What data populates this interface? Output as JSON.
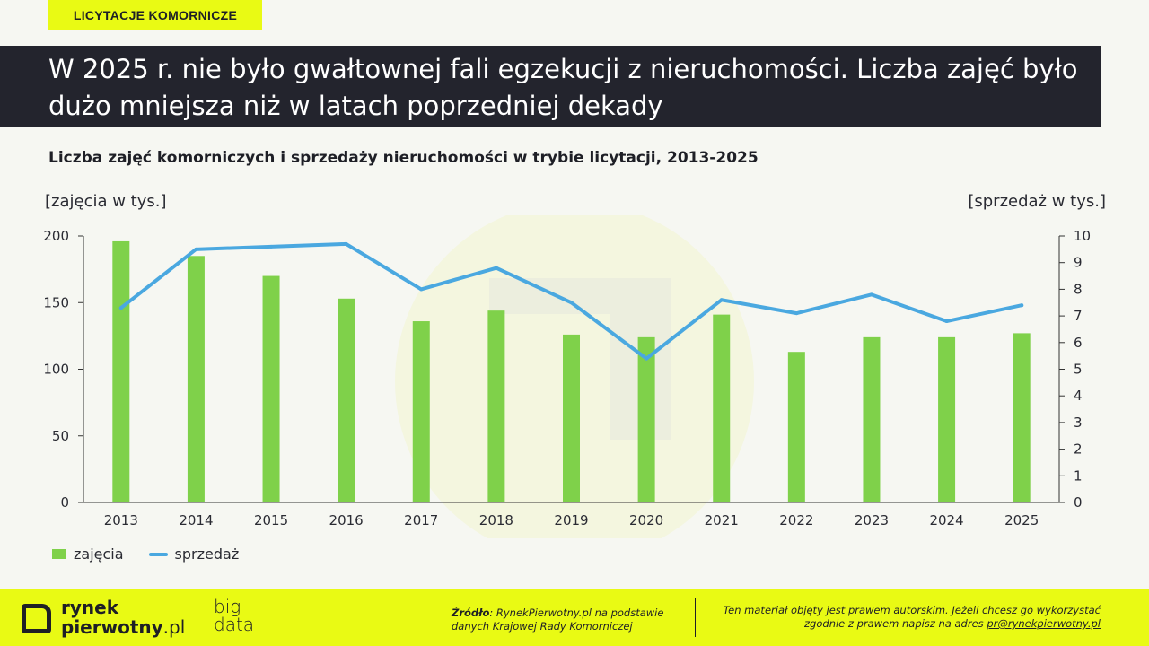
{
  "tag": "LICYTACJE KOMORNICZE",
  "headline": "W 2025 r. nie było gwałtownej fali egzekucji z nieruchomości. Liczba zajęć było dużo mniejsza niż w latach poprzedniej dekady",
  "chart_data": {
    "type": "bar",
    "title": "Liczba zajęć komorniczych i sprzedaży nieruchomości w trybie licytacji, 2013-2025",
    "ylabel_left": "[zajęcia w tys.]",
    "ylabel_right": "[sprzedaż w tys.]",
    "categories": [
      "2013",
      "2014",
      "2015",
      "2016",
      "2017",
      "2018",
      "2019",
      "2020",
      "2021",
      "2022",
      "2023",
      "2024",
      "2025"
    ],
    "series": [
      {
        "name": "zajęcia",
        "type": "bar",
        "axis": "left",
        "color": "#7fd14a",
        "values": [
          196,
          185,
          170,
          153,
          136,
          144,
          126,
          124,
          141,
          113,
          124,
          124,
          127
        ]
      },
      {
        "name": "sprzedaż",
        "type": "line",
        "axis": "right",
        "color": "#4aa8e0",
        "values": [
          7.3,
          9.5,
          9.6,
          9.7,
          8.0,
          8.8,
          7.5,
          5.4,
          7.6,
          7.1,
          7.8,
          6.8,
          7.4
        ]
      }
    ],
    "ylim_left": [
      0,
      200
    ],
    "yticks_left": [
      0,
      50,
      100,
      150,
      200
    ],
    "ylim_right": [
      0,
      10
    ],
    "yticks_right": [
      0,
      1,
      2,
      3,
      4,
      5,
      6,
      7,
      8,
      9,
      10
    ],
    "legend": "bottom-left",
    "grid": false
  },
  "footer": {
    "logo_line1": "rynek",
    "logo_line2_bold": "pierwotny",
    "logo_line2_thin": ".pl",
    "bigdata_line1": "big",
    "bigdata_line2": "data",
    "source_label": "Źródło",
    "source_text": ": RynekPierwotny.pl na podstawie danych Krajowej Rady Komorniczej",
    "copyright_text": "Ten materiał objęty jest prawem autorskim. Jeżeli chcesz go wykorzystać zgodnie z prawem napisz na adres ",
    "copyright_email": "pr@rynekpierwotny.pl"
  }
}
